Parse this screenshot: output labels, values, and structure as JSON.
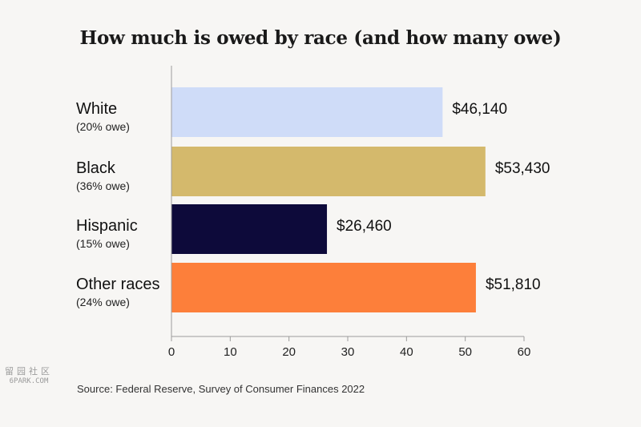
{
  "chart_data": {
    "type": "bar",
    "orientation": "horizontal",
    "title": "How much is owed by race (and how many owe)",
    "categories": [
      "White",
      "Black",
      "Hispanic",
      "Other races"
    ],
    "sublabels": [
      "(20% owe)",
      "(36% owe)",
      "(15% owe)",
      "(24% owe)"
    ],
    "values": [
      46.14,
      53.43,
      26.46,
      51.81
    ],
    "value_labels": [
      "$46,140",
      "$53,430",
      "$26,460",
      "$51,810"
    ],
    "colors": [
      "#cfdcf8",
      "#d4b96c",
      "#0d0a3a",
      "#fd7f3a"
    ],
    "xlim": [
      0,
      60
    ],
    "xticks": [
      0,
      10,
      20,
      30,
      40,
      50,
      60
    ],
    "grid": false
  },
  "source": "Source: Federal Reserve, Survey of Consumer Finances 2022",
  "watermark": {
    "logo_text": "留园社区",
    "domain": "6PARK.COM"
  }
}
